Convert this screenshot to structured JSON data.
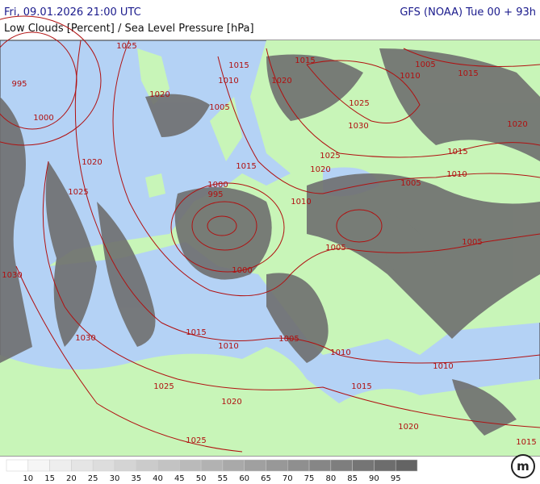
{
  "header": {
    "datetime": "Fri, 09.01.2026 21:00 UTC",
    "model": "GFS (NOAA) Tue 00 + 93h",
    "subtitle": "Low Clouds [Percent] / Sea Level Pressure [hPa]"
  },
  "isobar_labels": [
    "1025",
    "995",
    "1020",
    "1000",
    "1015",
    "1010",
    "1015",
    "1020",
    "1005",
    "1005",
    "1010",
    "1015",
    "1025",
    "1030",
    "1020",
    "1025",
    "1020",
    "1015",
    "1020",
    "1025",
    "1015",
    "1010",
    "1005",
    "1000",
    "995",
    "1010",
    "1005",
    "1005",
    "1000",
    "1030",
    "1030",
    "1015",
    "1010",
    "1005",
    "1010",
    "1010",
    "1015",
    "1025",
    "1020",
    "1020",
    "1025",
    "1015"
  ],
  "legend": {
    "labels": [
      10,
      15,
      20,
      25,
      30,
      35,
      40,
      45,
      50,
      55,
      60,
      65,
      70,
      75,
      80,
      85,
      90,
      95
    ]
  },
  "logo": "m"
}
